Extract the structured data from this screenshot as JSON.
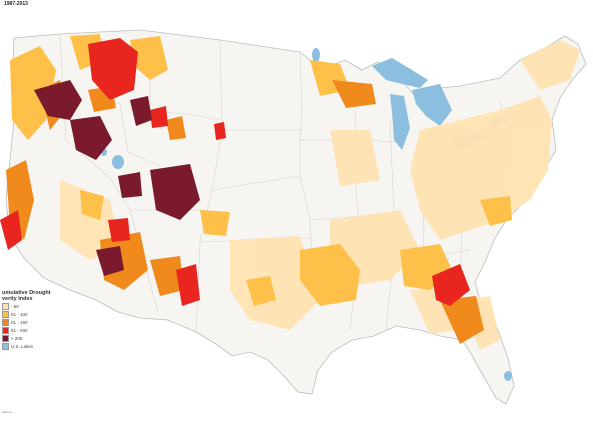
{
  "map": {
    "title": "1987-2013",
    "legend": {
      "title": "umulative Drought\nverity Index",
      "items": [
        {
          "label": "- 50",
          "color": "#ffe3b2"
        },
        {
          "label": "51 - 100",
          "color": "#ffc04a"
        },
        {
          "label": "01 - 150",
          "color": "#f08a1c"
        },
        {
          "label": "51 - 200",
          "color": "#e8251f"
        },
        {
          "label": "> 200",
          "color": "#7a1a2c"
        },
        {
          "label": "U.S. Lakes",
          "color": "#8cbedf"
        }
      ]
    },
    "footnote": "Source: ..."
  }
}
